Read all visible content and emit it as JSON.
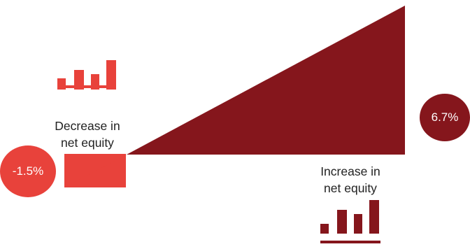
{
  "decrease": {
    "value": -1.5,
    "value_label": "-1.5%",
    "label_line1": "Decrease in",
    "label_line2": "net equity",
    "color": "#e8423b",
    "icon": "bar-chart-icon"
  },
  "increase": {
    "value": 6.7,
    "value_label": "6.7%",
    "label_line1": "Increase in",
    "label_line2": "net equity",
    "color": "#85161c",
    "icon": "bar-chart-icon"
  }
}
